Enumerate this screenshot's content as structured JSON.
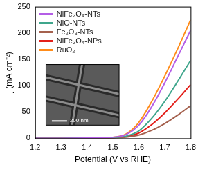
{
  "chart_data": {
    "type": "line",
    "x_label": "Potential (V vs RHE)",
    "y_label": "j (mA cm⁻²)",
    "x": [
      1.2,
      1.3,
      1.4,
      1.5,
      1.55,
      1.6,
      1.65,
      1.7,
      1.75,
      1.8
    ],
    "series": [
      {
        "name": "NiFe₂O₄-NTs",
        "color": "#b45ee6",
        "values": [
          0,
          0,
          0.5,
          2,
          7,
          25,
          60,
          105,
          155,
          205
        ]
      },
      {
        "name": "NiO-NTs",
        "color": "#3fa68c",
        "values": [
          0,
          0,
          0.5,
          1.5,
          4,
          14,
          38,
          70,
          108,
          148
        ]
      },
      {
        "name": "Fe₂O₃-NTs",
        "color": "#a5614e",
        "values": [
          0,
          0,
          0.2,
          0.5,
          2,
          6,
          15,
          28,
          44,
          62
        ]
      },
      {
        "name": "NiFe₂O₄-NPs",
        "color": "#e3201b",
        "values": [
          0,
          0,
          0.3,
          1,
          3,
          10,
          26,
          48,
          74,
          102
        ]
      },
      {
        "name": "RuO₂",
        "color": "#ff8c1a",
        "values": [
          0,
          0,
          0.5,
          2,
          8,
          30,
          70,
          118,
          170,
          225
        ]
      }
    ],
    "xlim": [
      1.2,
      1.8
    ],
    "xticks": [
      1.2,
      1.3,
      1.4,
      1.5,
      1.6,
      1.7,
      1.8
    ],
    "ylim": [
      0,
      250
    ],
    "yticks": [
      0,
      50,
      100,
      150,
      200,
      250
    ],
    "grid": false,
    "legend": "upper left",
    "annotations": [
      "200 nm"
    ]
  }
}
